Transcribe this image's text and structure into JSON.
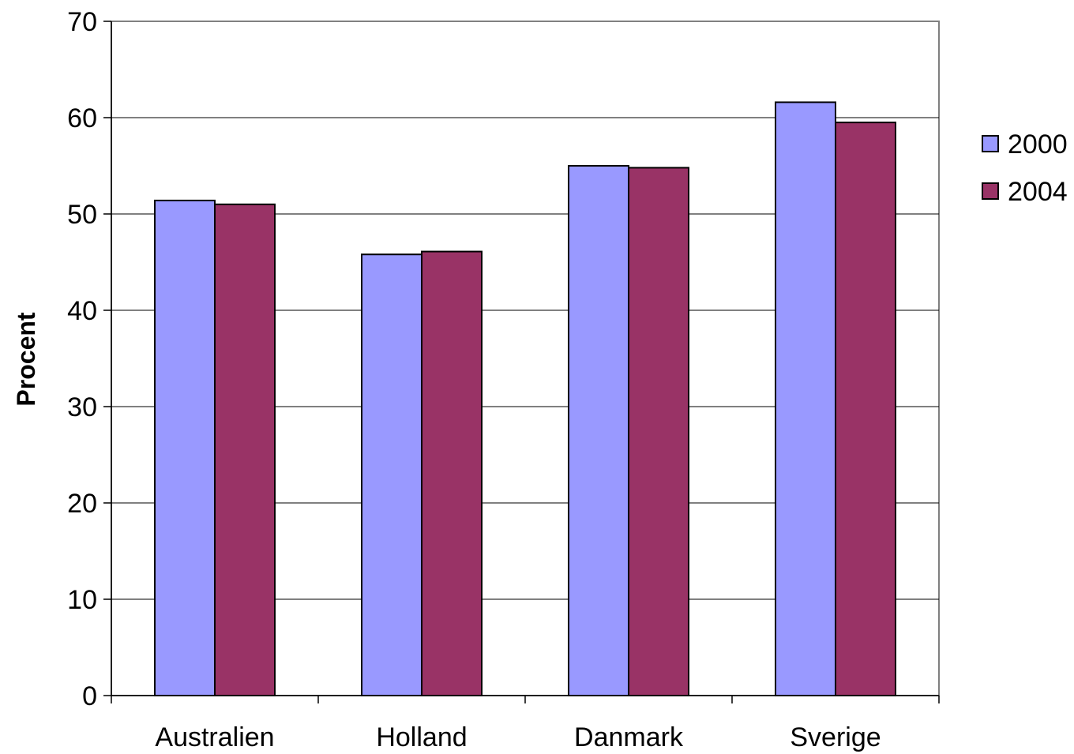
{
  "chart_data": {
    "type": "bar",
    "title": "",
    "xlabel": "",
    "ylabel": "Procent",
    "categories": [
      "Australien",
      "Holland",
      "Danmark",
      "Sverige"
    ],
    "series": [
      {
        "name": "2000",
        "values": [
          51.4,
          45.8,
          55.0,
          61.6
        ],
        "color": "#9999ff"
      },
      {
        "name": "2004",
        "values": [
          51.0,
          46.1,
          54.8,
          59.5
        ],
        "color": "#993366"
      }
    ],
    "ylim": [
      0,
      70
    ],
    "yticks": [
      0,
      10,
      20,
      30,
      40,
      50,
      60,
      70
    ],
    "grid": true,
    "legend_position": "right"
  }
}
